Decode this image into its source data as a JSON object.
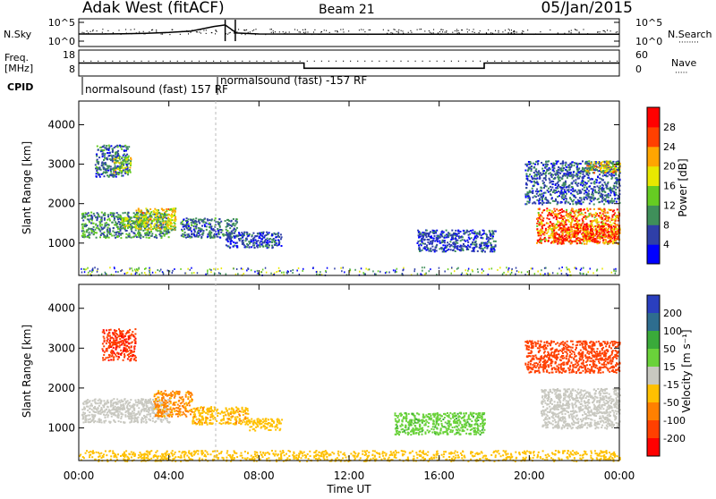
{
  "header": {
    "station": "Adak West (fitACF)",
    "beam": "Beam 21",
    "date": "05/Jan/2015"
  },
  "noise_panel": {
    "left_label": "N.Sky",
    "right_label": "N.Search",
    "left_ticks": [
      "10^5",
      "10^0"
    ],
    "right_ticks": [
      "10^5",
      "10^0"
    ]
  },
  "freq_panel": {
    "left_label_line1": "Freq.",
    "left_label_line2": "[MHz]",
    "left_ticks": [
      "18",
      "8"
    ],
    "right_label": "Nave",
    "right_ticks": [
      "60",
      "0"
    ]
  },
  "cpid": {
    "label": "CPID",
    "entries": [
      "normalsound (fast) 157 RF",
      "normalsound (fast) -157 RF"
    ]
  },
  "power_panel": {
    "ylabel": "Slant Range [km]",
    "yticks": [
      "1000",
      "2000",
      "3000",
      "4000"
    ],
    "colorbar_label": "Power [dB]",
    "colorbar_ticks": [
      "4",
      "8",
      "12",
      "16",
      "20",
      "24",
      "28"
    ],
    "colors": [
      "#0000ff",
      "#2f3fa8",
      "#3f8f5a",
      "#66cc22",
      "#e8e800",
      "#ffa500",
      "#ff4000",
      "#ff0000"
    ]
  },
  "velocity_panel": {
    "ylabel": "Slant Range [km]",
    "yticks": [
      "1000",
      "2000",
      "3000",
      "4000"
    ],
    "colorbar_label": "Velocity [m s⁻¹]",
    "colorbar_ticks": [
      "200",
      "100",
      "50",
      "15",
      "-15",
      "-50",
      "-100",
      "-200"
    ],
    "colors": [
      "#2a3fbf",
      "#2e6d8f",
      "#3aaa3a",
      "#6ad23a",
      "#c8c8c0",
      "#ffc000",
      "#ff8000",
      "#ff4000",
      "#ff0000"
    ]
  },
  "xaxis": {
    "label": "Time UT",
    "ticks": [
      "00:00",
      "04:00",
      "08:00",
      "12:00",
      "16:00",
      "20:00",
      "00:00"
    ]
  },
  "chart_data": [
    {
      "type": "line",
      "title": "Adak West (fitACF)",
      "panel": "noise",
      "x_range_hours": [
        0,
        24
      ],
      "series": [
        {
          "name": "N.Sky",
          "x": [
            0,
            1,
            2,
            3,
            4,
            5,
            6,
            6.5,
            7,
            8,
            12,
            16,
            20,
            24
          ],
          "values": [
            80,
            80,
            90,
            120,
            200,
            500,
            8000,
            20000,
            150,
            80,
            70,
            70,
            70,
            70
          ]
        }
      ],
      "ylim": [
        1,
        100000
      ],
      "yscale": "log"
    },
    {
      "type": "line",
      "panel": "frequency",
      "series": [
        {
          "name": "Freq",
          "x": [
            0,
            10,
            10,
            18,
            18,
            24
          ],
          "values": [
            13,
            13,
            11,
            11,
            13,
            13
          ]
        },
        {
          "name": "Nave",
          "x": [
            0,
            24
          ],
          "values": [
            16,
            16
          ]
        }
      ],
      "ylim": [
        8,
        18
      ]
    },
    {
      "type": "heatmap",
      "panel": "power",
      "xlabel": "Time UT",
      "ylabel": "Slant Range [km]",
      "ylim": [
        180,
        4600
      ],
      "x_range_hours": [
        0,
        24
      ],
      "colorbar_range": [
        0,
        30
      ],
      "regions": [
        {
          "x": [
            0.1,
            4.0
          ],
          "range": [
            1150,
            1800
          ],
          "value": 10
        },
        {
          "x": [
            2.5,
            4.3
          ],
          "range": [
            1350,
            1900
          ],
          "value": 17
        },
        {
          "x": [
            1.8,
            3.0
          ],
          "range": [
            1400,
            1700
          ],
          "value": 14
        },
        {
          "x": [
            4.5,
            7.0
          ],
          "range": [
            1150,
            1650
          ],
          "value": 8
        },
        {
          "x": [
            6.5,
            9.0
          ],
          "range": [
            900,
            1300
          ],
          "value": 6
        },
        {
          "x": [
            0.7,
            2.2
          ],
          "range": [
            2700,
            3500
          ],
          "value": 8
        },
        {
          "x": [
            1.5,
            2.3
          ],
          "range": [
            2800,
            3200
          ],
          "value": 16
        },
        {
          "x": [
            15.0,
            18.5
          ],
          "range": [
            800,
            1350
          ],
          "value": 6
        },
        {
          "x": [
            20.3,
            24.0
          ],
          "range": [
            1000,
            1900
          ],
          "value": 24
        },
        {
          "x": [
            21.0,
            24.0
          ],
          "range": [
            1050,
            1500
          ],
          "value": 28
        },
        {
          "x": [
            19.8,
            24.0
          ],
          "range": [
            2000,
            3100
          ],
          "value": 7
        },
        {
          "x": [
            22.5,
            24.0
          ],
          "range": [
            2800,
            3100
          ],
          "value": 18
        }
      ]
    },
    {
      "type": "heatmap",
      "panel": "velocity",
      "xlabel": "Time UT",
      "ylabel": "Slant Range [km]",
      "ylim": [
        180,
        4600
      ],
      "x_range_hours": [
        0,
        24
      ],
      "colorbar_range": [
        -200,
        200
      ],
      "regions": [
        {
          "x": [
            0.1,
            4.0
          ],
          "range": [
            1150,
            1750
          ],
          "value": 0
        },
        {
          "x": [
            3.3,
            5.0
          ],
          "range": [
            1300,
            1950
          ],
          "value": -60
        },
        {
          "x": [
            5.0,
            7.5
          ],
          "range": [
            1100,
            1550
          ],
          "value": -40
        },
        {
          "x": [
            7.5,
            9.0
          ],
          "range": [
            950,
            1250
          ],
          "value": -30
        },
        {
          "x": [
            1.0,
            2.5
          ],
          "range": [
            2700,
            3500
          ],
          "value": -180
        },
        {
          "x": [
            14.0,
            18.0
          ],
          "range": [
            850,
            1400
          ],
          "value": 40
        },
        {
          "x": [
            20.5,
            24.0
          ],
          "range": [
            1000,
            2000
          ],
          "value": 0
        },
        {
          "x": [
            19.8,
            24.0
          ],
          "range": [
            2400,
            3200
          ],
          "value": -150
        },
        {
          "x": [
            0,
            24
          ],
          "range": [
            180,
            450
          ],
          "value": -30
        }
      ]
    }
  ]
}
